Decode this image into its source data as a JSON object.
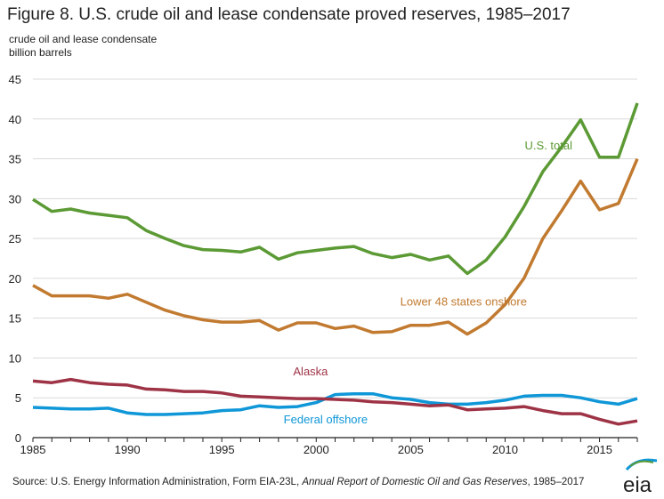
{
  "title": "Figure 8. U.S. crude oil and lease condensate proved reserves, 1985–2017",
  "source": {
    "prefix": "Source: U.S. Energy Information Administration, Form EIA-23L, ",
    "italic": "Annual Report of Domestic Oil and Gas Reserves",
    "suffix": ", 1985–2017"
  },
  "logo_text": "eia",
  "chart_data": {
    "type": "line",
    "ylabel_lines": [
      "crude oil and lease condensate",
      "billion barrels"
    ],
    "xlim": [
      1985,
      2017
    ],
    "ylim": [
      0,
      45
    ],
    "yticks": [
      0,
      5,
      10,
      15,
      20,
      25,
      30,
      35,
      40,
      45
    ],
    "xticks": [
      1985,
      1990,
      1995,
      2000,
      2005,
      2010,
      2015
    ],
    "grid": "horizontal",
    "x": [
      1985,
      1986,
      1987,
      1988,
      1989,
      1990,
      1991,
      1992,
      1993,
      1994,
      1995,
      1996,
      1997,
      1998,
      1999,
      2000,
      2001,
      2002,
      2003,
      2004,
      2005,
      2006,
      2007,
      2008,
      2009,
      2010,
      2011,
      2012,
      2013,
      2014,
      2015,
      2016,
      2017
    ],
    "series": [
      {
        "name": "U.S. total",
        "color": "#5b9a34",
        "label_at": [
          2012.3,
          36.2
        ],
        "values": [
          29.9,
          28.4,
          28.7,
          28.2,
          27.9,
          27.6,
          26.0,
          25.0,
          24.1,
          23.6,
          23.5,
          23.3,
          23.9,
          22.4,
          23.2,
          23.5,
          23.8,
          24.0,
          23.1,
          22.6,
          23.0,
          22.3,
          22.8,
          20.6,
          22.3,
          25.2,
          29.0,
          33.4,
          36.5,
          39.9,
          35.2,
          35.2,
          42.0
        ]
      },
      {
        "name": "Lower 48 states onshore",
        "color": "#c17a30",
        "label_at": [
          2007.8,
          16.6
        ],
        "values": [
          19.1,
          17.8,
          17.8,
          17.8,
          17.5,
          18.0,
          17.0,
          16.0,
          15.3,
          14.8,
          14.5,
          14.5,
          14.7,
          13.5,
          14.4,
          14.4,
          13.7,
          14.0,
          13.2,
          13.3,
          14.1,
          14.1,
          14.5,
          13.0,
          14.4,
          16.7,
          20.0,
          25.0,
          28.5,
          32.2,
          28.6,
          29.4,
          35.0
        ]
      },
      {
        "name": "Alaska",
        "color": "#9e3346",
        "label_at": [
          1999.7,
          7.8
        ],
        "values": [
          7.1,
          6.9,
          7.3,
          6.9,
          6.7,
          6.6,
          6.1,
          6.0,
          5.8,
          5.8,
          5.6,
          5.2,
          5.1,
          5.0,
          4.9,
          4.9,
          4.8,
          4.7,
          4.5,
          4.4,
          4.2,
          4.0,
          4.1,
          3.5,
          3.6,
          3.7,
          3.9,
          3.4,
          3.0,
          3.0,
          2.3,
          1.7,
          2.1
        ]
      },
      {
        "name": "Federal offshore",
        "color": "#0f97d8",
        "label_at": [
          2000.5,
          1.8
        ],
        "values": [
          3.8,
          3.7,
          3.6,
          3.6,
          3.7,
          3.1,
          2.9,
          2.9,
          3.0,
          3.1,
          3.4,
          3.5,
          4.0,
          3.8,
          3.9,
          4.4,
          5.4,
          5.5,
          5.5,
          5.0,
          4.8,
          4.4,
          4.2,
          4.2,
          4.4,
          4.7,
          5.2,
          5.3,
          5.3,
          5.0,
          4.5,
          4.2,
          4.9
        ]
      }
    ]
  }
}
